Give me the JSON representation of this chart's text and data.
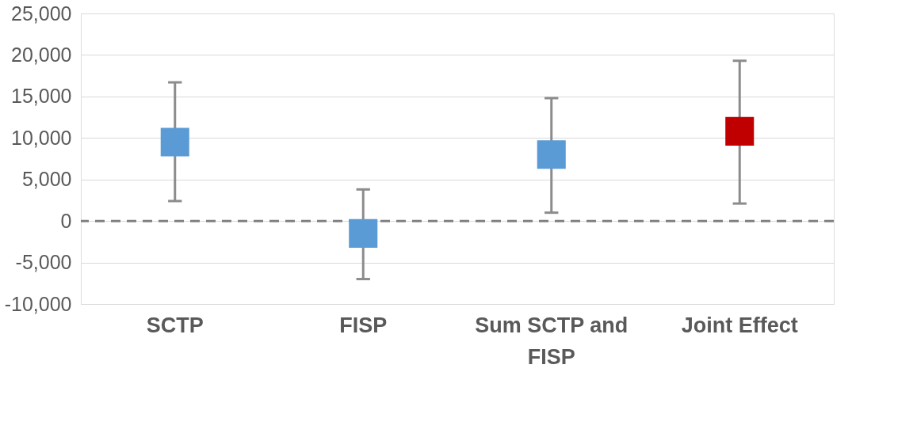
{
  "chart_data": {
    "type": "scatter",
    "categories": [
      "SCTP",
      "FISP",
      "Sum SCTP and FISP",
      "Joint Effect"
    ],
    "values": [
      9500,
      -1500,
      8000,
      10800
    ],
    "colors": [
      "#5b9bd5",
      "#5b9bd5",
      "#5b9bd5",
      "#c00000"
    ],
    "errors": [
      [
        2400,
        16700
      ],
      [
        -7000,
        3800
      ],
      [
        1000,
        14800
      ],
      [
        2100,
        19300
      ]
    ],
    "ylim": [
      -10000,
      25000
    ],
    "yticks": [
      {
        "value": -10000,
        "label": "-10,000"
      },
      {
        "value": -5000,
        "label": "-5,000"
      },
      0,
      {
        "value": 5000,
        "label": "5,000"
      },
      {
        "value": 10000,
        "label": "10,000"
      },
      {
        "value": 15000,
        "label": "15,000"
      },
      {
        "value": 20000,
        "label": "20,000"
      },
      {
        "value": 25000,
        "label": "25,000"
      }
    ],
    "ref_lines": [
      {
        "axis": "y",
        "value": 0,
        "color": "#808080",
        "line_style": "dashed"
      }
    ],
    "grid": "y",
    "marker": "square"
  }
}
